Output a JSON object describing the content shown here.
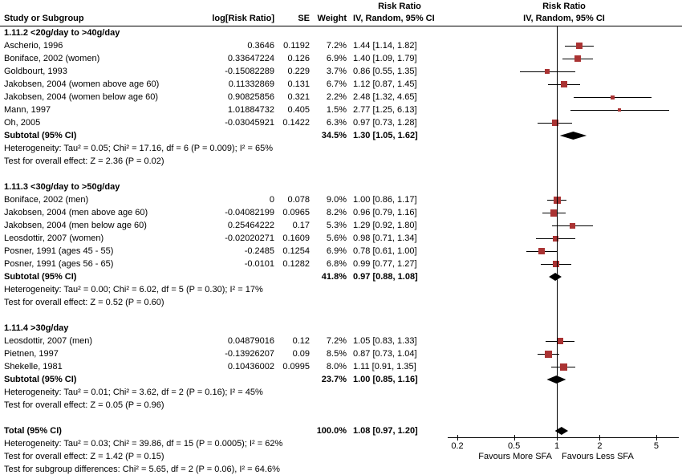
{
  "chart_data": {
    "type": "forest-plot",
    "effect_measure": "Risk Ratio",
    "method": "IV, Random, 95% CI",
    "columns": {
      "study": "Study or Subgroup",
      "log_rr": "log[Risk Ratio]",
      "se": "SE",
      "weight": "Weight"
    },
    "x_scale": "log",
    "x_ticks": [
      0.2,
      0.5,
      1,
      2,
      5
    ],
    "favours_left": "Favours More SFA",
    "favours_right": "Favours Less SFA",
    "colors": {
      "marker": "#aa3333",
      "line": "#000000",
      "diamond": "#000000",
      "axis": "#000000"
    },
    "groups": [
      {
        "title": "1.11.2 <20g/day to >40g/day",
        "studies": [
          {
            "name": "Ascherio, 1996",
            "log_rr": "0.3646",
            "se": "0.1192",
            "weight": "7.2%",
            "w": 7.2,
            "ci": "1.44 [1.14, 1.82]",
            "rr": 1.44,
            "lo": 1.14,
            "hi": 1.82
          },
          {
            "name": "Boniface, 2002 (women)",
            "log_rr": "0.33647224",
            "se": "0.126",
            "weight": "6.9%",
            "w": 6.9,
            "ci": "1.40 [1.09, 1.79]",
            "rr": 1.4,
            "lo": 1.09,
            "hi": 1.79
          },
          {
            "name": "Goldbourt, 1993",
            "log_rr": "-0.15082289",
            "se": "0.229",
            "weight": "3.7%",
            "w": 3.7,
            "ci": "0.86 [0.55, 1.35]",
            "rr": 0.86,
            "lo": 0.55,
            "hi": 1.35
          },
          {
            "name": "Jakobsen, 2004 (women above age 60)",
            "log_rr": "0.11332869",
            "se": "0.131",
            "weight": "6.7%",
            "w": 6.7,
            "ci": "1.12 [0.87, 1.45]",
            "rr": 1.12,
            "lo": 0.87,
            "hi": 1.45
          },
          {
            "name": "Jakobsen, 2004 (women below age 60)",
            "log_rr": "0.90825856",
            "se": "0.321",
            "weight": "2.2%",
            "w": 2.2,
            "ci": "2.48 [1.32, 4.65]",
            "rr": 2.48,
            "lo": 1.32,
            "hi": 4.65
          },
          {
            "name": "Mann, 1997",
            "log_rr": "1.01884732",
            "se": "0.405",
            "weight": "1.5%",
            "w": 1.5,
            "ci": "2.77 [1.25, 6.13]",
            "rr": 2.77,
            "lo": 1.25,
            "hi": 6.13
          },
          {
            "name": "Oh, 2005",
            "log_rr": "-0.03045921",
            "se": "0.1422",
            "weight": "6.3%",
            "w": 6.3,
            "ci": "0.97 [0.73, 1.28]",
            "rr": 0.97,
            "lo": 0.73,
            "hi": 1.28
          }
        ],
        "subtotal": {
          "label": "Subtotal (95% CI)",
          "weight": "34.5%",
          "ci": "1.30 [1.05, 1.62]",
          "rr": 1.3,
          "lo": 1.05,
          "hi": 1.62
        },
        "heterogeneity": "Heterogeneity: Tau² = 0.05; Chi² = 17.16, df = 6 (P = 0.009); I² = 65%",
        "overall_effect": "Test for overall effect: Z = 2.36 (P = 0.02)"
      },
      {
        "title": "1.11.3 <30g/day to >50g/day",
        "studies": [
          {
            "name": "Boniface, 2002 (men)",
            "log_rr": "0",
            "se": "0.078",
            "weight": "9.0%",
            "w": 9.0,
            "ci": "1.00 [0.86, 1.17]",
            "rr": 1.0,
            "lo": 0.86,
            "hi": 1.17
          },
          {
            "name": "Jakobsen, 2004 (men above age 60)",
            "log_rr": "-0.04082199",
            "se": "0.0965",
            "weight": "8.2%",
            "w": 8.2,
            "ci": "0.96 [0.79, 1.16]",
            "rr": 0.96,
            "lo": 0.79,
            "hi": 1.16
          },
          {
            "name": "Jakobsen, 2004 (men below age 60)",
            "log_rr": "0.25464222",
            "se": "0.17",
            "weight": "5.3%",
            "w": 5.3,
            "ci": "1.29 [0.92, 1.80]",
            "rr": 1.29,
            "lo": 0.92,
            "hi": 1.8
          },
          {
            "name": "Leosdottir, 2007 (women)",
            "log_rr": "-0.02020271",
            "se": "0.1609",
            "weight": "5.6%",
            "w": 5.6,
            "ci": "0.98 [0.71, 1.34]",
            "rr": 0.98,
            "lo": 0.71,
            "hi": 1.34
          },
          {
            "name": "Posner, 1991 (ages 45 - 55)",
            "log_rr": "-0.2485",
            "se": "0.1254",
            "weight": "6.9%",
            "w": 6.9,
            "ci": "0.78 [0.61, 1.00]",
            "rr": 0.78,
            "lo": 0.61,
            "hi": 1.0
          },
          {
            "name": "Posner, 1991 (ages 56 - 65)",
            "log_rr": "-0.0101",
            "se": "0.1282",
            "weight": "6.8%",
            "w": 6.8,
            "ci": "0.99 [0.77, 1.27]",
            "rr": 0.99,
            "lo": 0.77,
            "hi": 1.27
          }
        ],
        "subtotal": {
          "label": "Subtotal (95% CI)",
          "weight": "41.8%",
          "ci": "0.97 [0.88, 1.08]",
          "rr": 0.97,
          "lo": 0.88,
          "hi": 1.08
        },
        "heterogeneity": "Heterogeneity: Tau² = 0.00; Chi² = 6.02, df = 5 (P = 0.30); I² = 17%",
        "overall_effect": "Test for overall effect: Z = 0.52 (P = 0.60)"
      },
      {
        "title": "1.11.4 >30g/day",
        "studies": [
          {
            "name": "Leosdottir, 2007 (men)",
            "log_rr": "0.04879016",
            "se": "0.12",
            "weight": "7.2%",
            "w": 7.2,
            "ci": "1.05 [0.83, 1.33]",
            "rr": 1.05,
            "lo": 0.83,
            "hi": 1.33
          },
          {
            "name": "Pietnen, 1997",
            "log_rr": "-0.13926207",
            "se": "0.09",
            "weight": "8.5%",
            "w": 8.5,
            "ci": "0.87 [0.73, 1.04]",
            "rr": 0.87,
            "lo": 0.73,
            "hi": 1.04
          },
          {
            "name": "Shekelle, 1981",
            "log_rr": "0.10436002",
            "se": "0.0995",
            "weight": "8.0%",
            "w": 8.0,
            "ci": "1.11 [0.91, 1.35]",
            "rr": 1.11,
            "lo": 0.91,
            "hi": 1.35
          }
        ],
        "subtotal": {
          "label": "Subtotal (95% CI)",
          "weight": "23.7%",
          "ci": "1.00 [0.85, 1.16]",
          "rr": 1.0,
          "lo": 0.85,
          "hi": 1.16
        },
        "heterogeneity": "Heterogeneity: Tau² = 0.01; Chi² = 3.62, df = 2 (P = 0.16); I² = 45%",
        "overall_effect": "Test for overall effect: Z = 0.05 (P = 0.96)"
      }
    ],
    "total": {
      "label": "Total (95% CI)",
      "weight": "100.0%",
      "ci": "1.08 [0.97, 1.20]",
      "rr": 1.08,
      "lo": 0.97,
      "hi": 1.2
    },
    "total_heterogeneity": "Heterogeneity: Tau² = 0.03; Chi² = 39.86, df = 15 (P = 0.0005); I² = 62%",
    "total_overall_effect": "Test for overall effect: Z = 1.42 (P = 0.15)",
    "subgroup_differences": "Test for subgroup differences: Chi² = 5.65, df = 2 (P = 0.06), I² = 64.6%"
  }
}
